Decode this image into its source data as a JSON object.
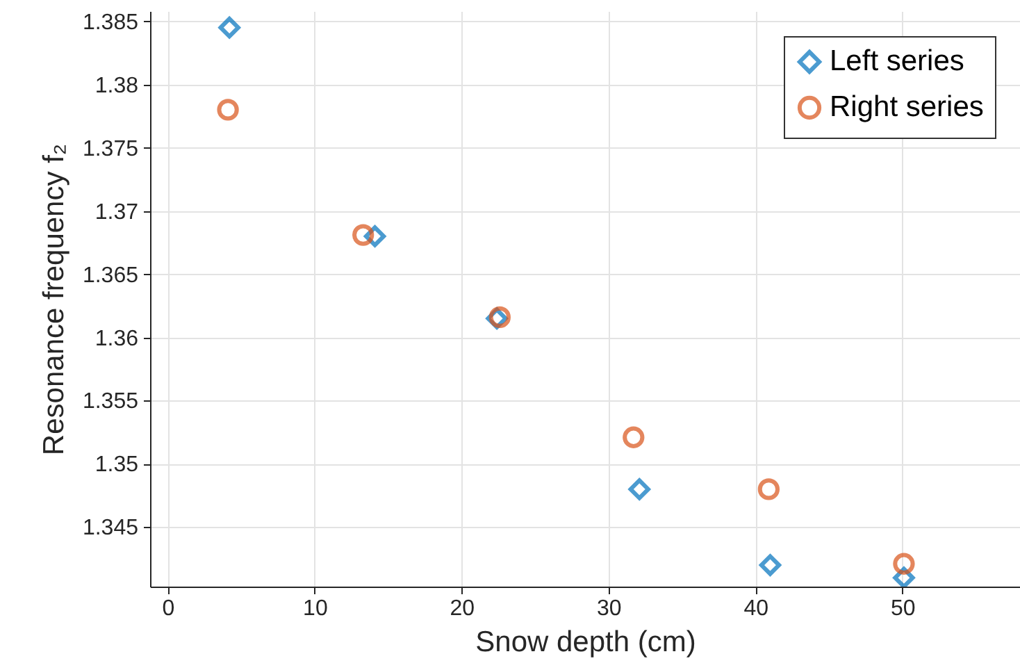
{
  "chart_data": {
    "type": "scatter",
    "xlabel": "Snow depth (cm)",
    "ylabel": "Resonance frequency f₂",
    "xlim": [
      -1.2,
      58
    ],
    "xticks": [
      0,
      10,
      20,
      30,
      40,
      50
    ],
    "ylim": [
      1.3403,
      1.3858
    ],
    "yticks": [
      1.345,
      1.35,
      1.355,
      1.36,
      1.365,
      1.37,
      1.375,
      1.38,
      1.385
    ],
    "grid": true,
    "legend": "top right",
    "series": [
      {
        "name": "Left series",
        "color": "#0072bd",
        "marker": "diamond",
        "x": [
          4.2,
          14.1,
          22.4,
          32.1,
          41,
          50.1
        ],
        "values": [
          1.3845,
          1.368,
          1.3615,
          1.348,
          1.342,
          1.341
        ]
      },
      {
        "name": "Right series",
        "color": "#d95319",
        "marker": "circle",
        "x": [
          4.1,
          13.3,
          22.6,
          31.7,
          40.9,
          50.1
        ],
        "values": [
          1.378,
          1.3681,
          1.3616,
          1.3521,
          1.348,
          1.3421
        ]
      }
    ]
  }
}
